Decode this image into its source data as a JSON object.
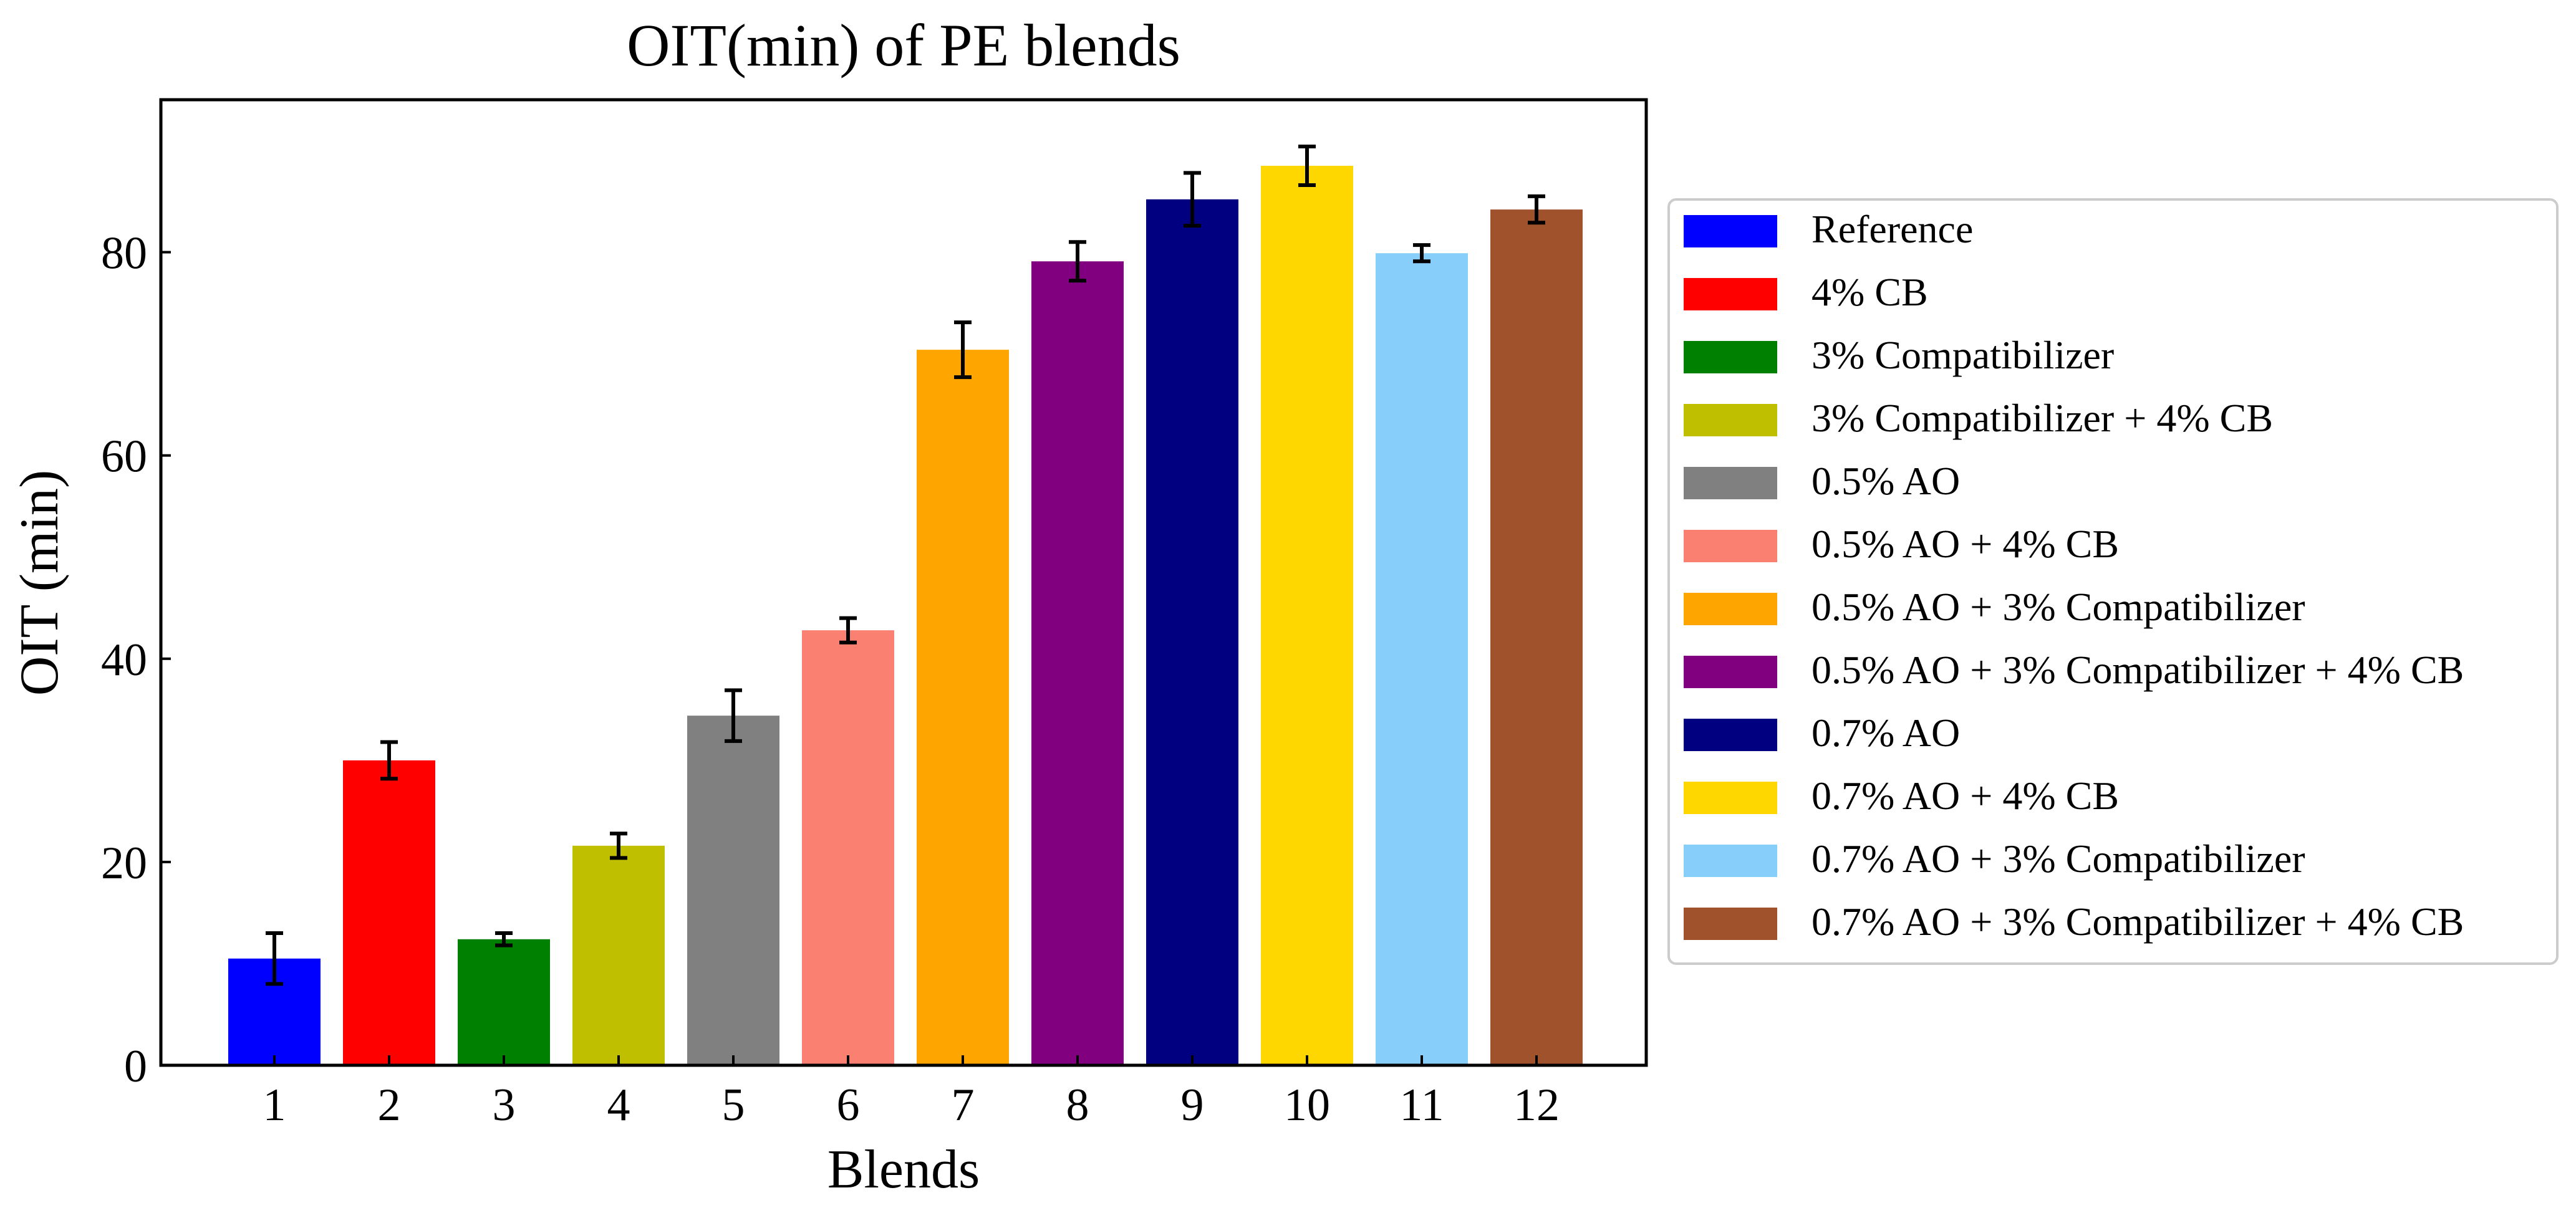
{
  "chart_data": {
    "type": "bar",
    "title": "OIT(min) of PE blends",
    "xlabel": "Blends",
    "ylabel": "OIT (min)",
    "ylim": [
      0,
      95
    ],
    "yticks": [
      0,
      20,
      40,
      60,
      80
    ],
    "categories": [
      "1",
      "2",
      "3",
      "4",
      "5",
      "6",
      "7",
      "8",
      "9",
      "10",
      "11",
      "12"
    ],
    "values": [
      10.5,
      30.0,
      12.4,
      21.6,
      34.4,
      42.8,
      70.4,
      79.1,
      85.2,
      88.5,
      79.9,
      84.2
    ],
    "errors": [
      2.5,
      1.8,
      0.6,
      1.2,
      2.5,
      1.2,
      2.7,
      1.9,
      2.6,
      1.9,
      0.8,
      1.3
    ],
    "series_names": [
      "Reference",
      "4% CB",
      "3% Compatibilizer",
      "3% Compatibilizer + 4% CB",
      "0.5% AO",
      "0.5% AO + 4% CB",
      "0.5% AO + 3% Compatibilizer",
      "0.5% AO + 3% Compatibilizer + 4% CB",
      "0.7% AO",
      "0.7% AO + 4% CB",
      "0.7% AO + 3% Compatibilizer",
      "0.7% AO + 3% Compatibilizer + 4% CB"
    ],
    "colors": [
      "#0000ff",
      "#ff0000",
      "#008000",
      "#bfbf00",
      "#808080",
      "#fa8072",
      "#ffa500",
      "#800080",
      "#000080",
      "#ffd700",
      "#87cefa",
      "#a0522d"
    ],
    "legend_position": "right"
  }
}
